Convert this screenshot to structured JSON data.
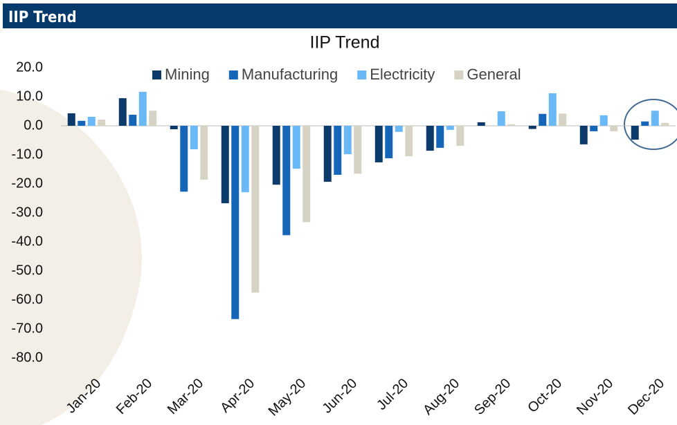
{
  "header_title": "IIP Trend",
  "chart_data": {
    "type": "bar",
    "title": "IIP Trend",
    "categories": [
      "Jan-20",
      "Feb-20",
      "Mar-20",
      "Apr-20",
      "May-20",
      "Jun-20",
      "Jul-20",
      "Aug-20",
      "Sep-20",
      "Oct-20",
      "Nov-20",
      "Dec-20"
    ],
    "series": [
      {
        "name": "Mining",
        "color": "#0b3a6b",
        "values": [
          4.3,
          9.5,
          -1.2,
          -26.7,
          -20.3,
          -19.3,
          -12.6,
          -8.6,
          1.2,
          -1.1,
          -6.4,
          -4.8
        ]
      },
      {
        "name": "Manufacturing",
        "color": "#1565b8",
        "values": [
          1.7,
          3.8,
          -22.7,
          -66.6,
          -37.7,
          -16.9,
          -11.2,
          -7.6,
          0,
          4.1,
          -1.9,
          1.5
        ]
      },
      {
        "name": "Electricity",
        "color": "#6ab8f5",
        "values": [
          3.1,
          11.7,
          -8.1,
          -22.9,
          -14.8,
          -9.8,
          -2.1,
          -1.4,
          5.0,
          11.2,
          3.6,
          5.2
        ]
      },
      {
        "name": "General",
        "color": "#d6d3c4",
        "values": [
          2.1,
          5.2,
          -18.6,
          -57.5,
          -33.2,
          -16.5,
          -10.5,
          -6.9,
          0.5,
          4.2,
          -1.9,
          1.0
        ]
      }
    ],
    "ylim": [
      -80,
      20
    ],
    "yticks": [
      {
        "value": 20,
        "label": "20.0"
      },
      {
        "value": 10,
        "label": "10.0"
      },
      {
        "value": 0,
        "label": "0.0"
      },
      {
        "value": -10,
        "label": "-10.0"
      },
      {
        "value": -20,
        "label": "-20.0"
      },
      {
        "value": -30,
        "label": "-30.0"
      },
      {
        "value": -40,
        "label": "-40.0"
      },
      {
        "value": -50,
        "label": "-50.0"
      },
      {
        "value": -60,
        "label": "-60.0"
      },
      {
        "value": -70,
        "label": "-70.0"
      },
      {
        "value": -80,
        "label": "-80.0"
      }
    ],
    "grid": false,
    "legend": "top"
  }
}
